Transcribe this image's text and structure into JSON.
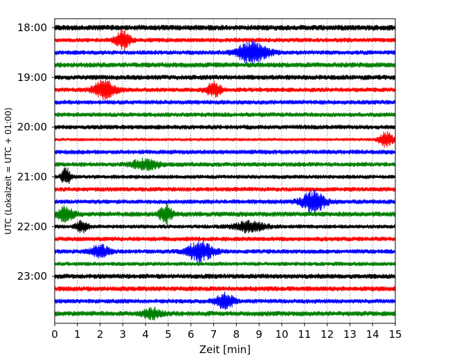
{
  "chart_data": {
    "type": "line",
    "subtype": "helicorder",
    "xlabel": "Zeit  [min]",
    "ylabel": "UTC (Lokalzeit = UTC + 01:00)",
    "xlim": [
      0,
      15
    ],
    "x_ticks": [
      "0",
      "1",
      "2",
      "3",
      "4",
      "5",
      "6",
      "7",
      "8",
      "9",
      "10",
      "11",
      "12",
      "13",
      "14",
      "15"
    ],
    "y_tick_labels": [
      "18:00",
      "19:00",
      "20:00",
      "21:00",
      "22:00",
      "23:00"
    ],
    "grid": "vertical dotted lines at each minute",
    "trace_interval_minutes": 15,
    "colors": [
      "#000000",
      "#ff0000",
      "#0000ff",
      "#008000"
    ],
    "traces": [
      {
        "start": "18:00",
        "color_index": 0,
        "base_amplitude": 0.55,
        "events": []
      },
      {
        "start": "18:15",
        "color_index": 1,
        "base_amplitude": 0.45,
        "events": [
          {
            "minute": 3.0,
            "amplitude": 1.6,
            "duration": 0.5
          }
        ]
      },
      {
        "start": "18:30",
        "color_index": 2,
        "base_amplitude": 0.45,
        "events": [
          {
            "minute": 8.7,
            "amplitude": 1.9,
            "duration": 1.0
          }
        ]
      },
      {
        "start": "18:45",
        "color_index": 3,
        "base_amplitude": 0.5,
        "events": []
      },
      {
        "start": "19:00",
        "color_index": 0,
        "base_amplitude": 0.5,
        "events": []
      },
      {
        "start": "19:15",
        "color_index": 1,
        "base_amplitude": 0.45,
        "events": [
          {
            "minute": 2.2,
            "amplitude": 1.7,
            "duration": 0.7
          },
          {
            "minute": 7.0,
            "amplitude": 1.3,
            "duration": 0.5
          }
        ]
      },
      {
        "start": "19:30",
        "color_index": 2,
        "base_amplitude": 0.45,
        "events": []
      },
      {
        "start": "19:45",
        "color_index": 3,
        "base_amplitude": 0.45,
        "events": []
      },
      {
        "start": "20:00",
        "color_index": 0,
        "base_amplitude": 0.45,
        "events": []
      },
      {
        "start": "20:15",
        "color_index": 1,
        "base_amplitude": 0.3,
        "events": [
          {
            "minute": 14.6,
            "amplitude": 1.4,
            "duration": 0.5
          }
        ]
      },
      {
        "start": "20:30",
        "color_index": 2,
        "base_amplitude": 0.45,
        "events": []
      },
      {
        "start": "20:45",
        "color_index": 3,
        "base_amplitude": 0.45,
        "events": [
          {
            "minute": 4.0,
            "amplitude": 0.9,
            "duration": 0.9
          }
        ]
      },
      {
        "start": "21:00",
        "color_index": 0,
        "base_amplitude": 0.4,
        "events": [
          {
            "minute": 0.5,
            "amplitude": 1.6,
            "duration": 0.3
          }
        ]
      },
      {
        "start": "21:15",
        "color_index": 1,
        "base_amplitude": 0.45,
        "events": []
      },
      {
        "start": "21:30",
        "color_index": 2,
        "base_amplitude": 0.45,
        "events": [
          {
            "minute": 11.4,
            "amplitude": 1.8,
            "duration": 0.8
          }
        ]
      },
      {
        "start": "21:45",
        "color_index": 3,
        "base_amplitude": 0.5,
        "events": [
          {
            "minute": 0.5,
            "amplitude": 1.4,
            "duration": 0.5
          },
          {
            "minute": 4.9,
            "amplitude": 1.6,
            "duration": 0.4
          }
        ]
      },
      {
        "start": "22:00",
        "color_index": 0,
        "base_amplitude": 0.4,
        "events": [
          {
            "minute": 1.2,
            "amplitude": 1.0,
            "duration": 0.4
          },
          {
            "minute": 8.6,
            "amplitude": 1.0,
            "duration": 1.0
          }
        ]
      },
      {
        "start": "22:15",
        "color_index": 1,
        "base_amplitude": 0.45,
        "events": []
      },
      {
        "start": "22:30",
        "color_index": 2,
        "base_amplitude": 0.45,
        "events": [
          {
            "minute": 2.0,
            "amplitude": 1.1,
            "duration": 0.6
          },
          {
            "minute": 6.4,
            "amplitude": 1.9,
            "duration": 0.8
          }
        ]
      },
      {
        "start": "22:45",
        "color_index": 3,
        "base_amplitude": 0.4,
        "events": []
      },
      {
        "start": "23:00",
        "color_index": 0,
        "base_amplitude": 0.5,
        "events": []
      },
      {
        "start": "23:15",
        "color_index": 1,
        "base_amplitude": 0.5,
        "events": []
      },
      {
        "start": "23:30",
        "color_index": 2,
        "base_amplitude": 0.45,
        "events": [
          {
            "minute": 7.5,
            "amplitude": 1.4,
            "duration": 0.6
          }
        ]
      },
      {
        "start": "23:45",
        "color_index": 3,
        "base_amplitude": 0.5,
        "events": [
          {
            "minute": 4.3,
            "amplitude": 0.9,
            "duration": 0.6
          }
        ]
      }
    ]
  }
}
